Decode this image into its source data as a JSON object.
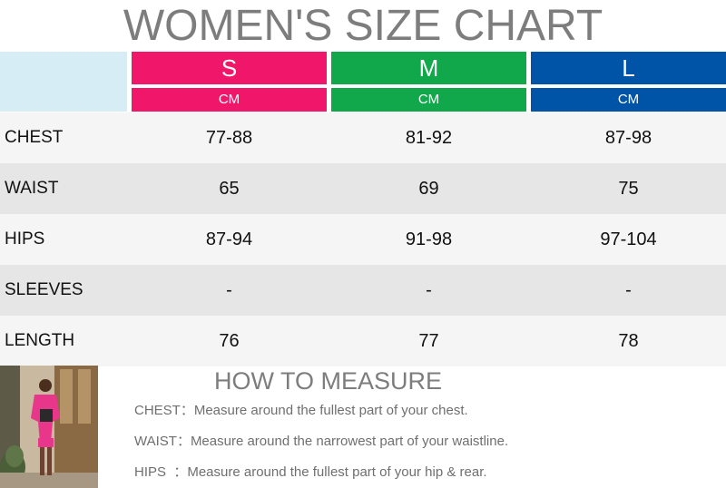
{
  "title": "WOMEN'S SIZE CHART",
  "colors": {
    "S": "#f0176a",
    "M": "#10a84a",
    "L": "#0054a8",
    "corner": "#d7edf5",
    "row_light": "#f5f5f5",
    "row_dark": "#e6e6e6"
  },
  "sizes": [
    {
      "name": "S",
      "unit": "CM"
    },
    {
      "name": "M",
      "unit": "CM"
    },
    {
      "name": "L",
      "unit": "CM"
    }
  ],
  "rows": [
    {
      "label": "CHEST",
      "values": [
        "77-88",
        "81-92",
        "87-98"
      ]
    },
    {
      "label": "WAIST",
      "values": [
        "65",
        "69",
        "75"
      ]
    },
    {
      "label": "HIPS",
      "values": [
        "87-94",
        "91-98",
        "97-104"
      ]
    },
    {
      "label": "SLEEVES",
      "values": [
        "-",
        "-",
        "-"
      ]
    },
    {
      "label": "LENGTH",
      "values": [
        "76",
        "77",
        "78"
      ]
    }
  ],
  "howto": {
    "title": "HOW TO MEASURE",
    "items": [
      "CHEST：Measure around the fullest part of your chest.",
      "WAIST：Measure around the narrowest part of your waistline.",
      "HIPS  ：Measure around the fullest part of your hip & rear."
    ]
  }
}
